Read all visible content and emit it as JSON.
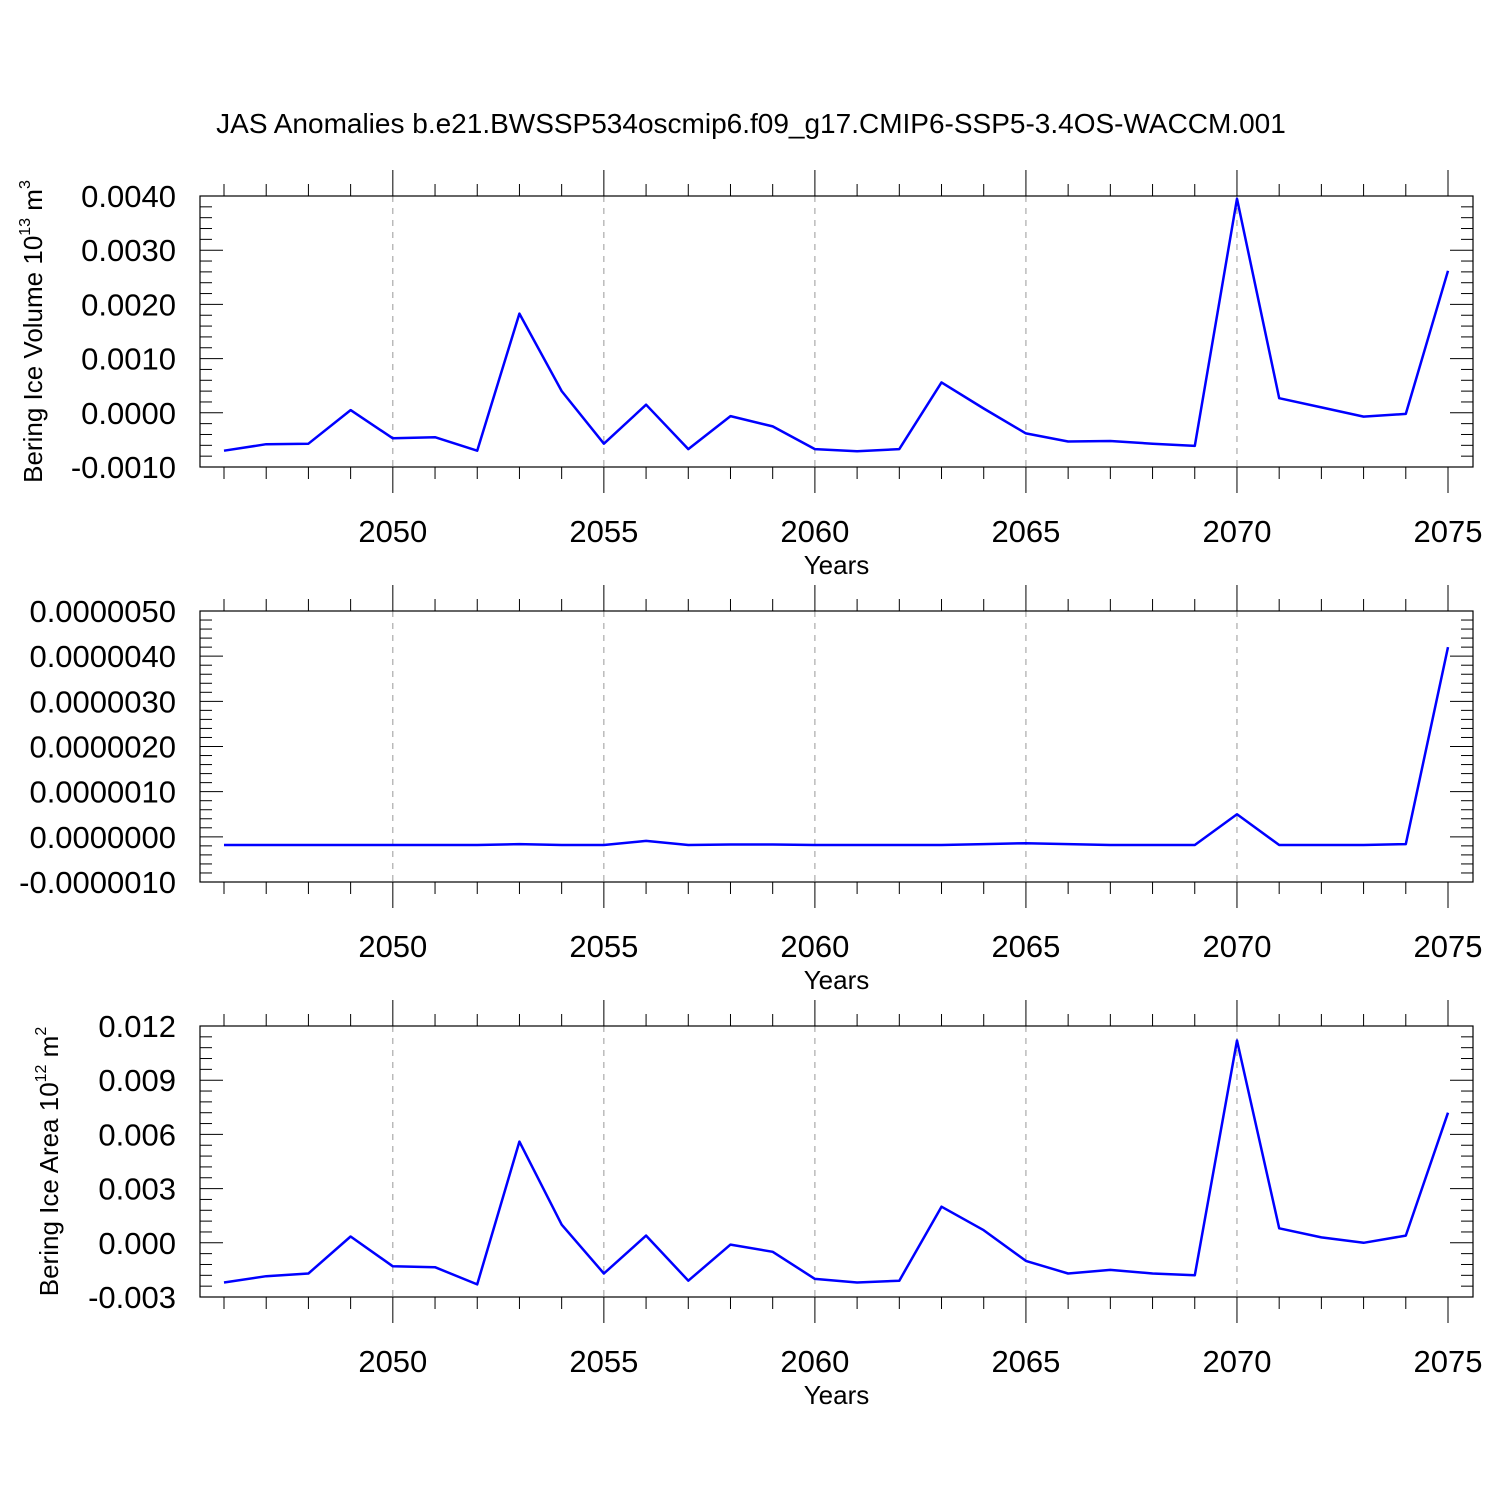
{
  "title": "JAS Anomalies b.e21.BWSSP534oscmip6.f09_g17.CMIP6-SSP5-3.4OS-WACCM.001",
  "colors": {
    "line": "#0000ff",
    "axis": "#000000",
    "grid": "#999999"
  },
  "chart_data": [
    {
      "type": "line",
      "name": "ice-volume",
      "ylabel": {
        "main": "Bering Ice Volume 10",
        "sup1": "13",
        "mid": " m",
        "sup2": "3"
      },
      "xlabel": "Years",
      "xlim": [
        2046,
        2075
      ],
      "x_ticks": [
        2050,
        2055,
        2060,
        2065,
        2070,
        2075
      ],
      "ylim": [
        -0.001,
        0.004
      ],
      "y_ticks": [
        -0.001,
        0,
        0.001,
        0.002,
        0.003,
        0.004
      ],
      "y_tick_labels": [
        "-0.0010",
        "0.0000",
        "0.0010",
        "0.0020",
        "0.0030",
        "0.0040"
      ],
      "x": [
        2046,
        2047,
        2048,
        2049,
        2050,
        2051,
        2052,
        2053,
        2054,
        2055,
        2056,
        2057,
        2058,
        2059,
        2060,
        2061,
        2062,
        2063,
        2064,
        2065,
        2066,
        2067,
        2068,
        2069,
        2070,
        2071,
        2072,
        2073,
        2074,
        2075
      ],
      "values": [
        -0.0007,
        -0.00058,
        -0.00057,
        5e-05,
        -0.00047,
        -0.00045,
        -0.0007,
        0.00183,
        0.0004,
        -0.00057,
        0.00015,
        -0.00067,
        -6e-05,
        -0.00025,
        -0.00067,
        -0.00071,
        -0.00067,
        0.00056,
        8e-05,
        -0.00038,
        -0.00053,
        -0.00052,
        -0.00057,
        -0.00061,
        0.00395,
        0.00027,
        0.0001,
        -7e-05,
        -2e-05,
        0.00262
      ]
    },
    {
      "type": "line",
      "name": "middle-series",
      "ylabel": null,
      "xlabel": "Years",
      "xlim": [
        2046,
        2075
      ],
      "x_ticks": [
        2050,
        2055,
        2060,
        2065,
        2070,
        2075
      ],
      "ylim": [
        -1e-06,
        5e-06
      ],
      "y_ticks": [
        -1e-06,
        0,
        1e-06,
        2e-06,
        3e-06,
        4e-06,
        5e-06
      ],
      "y_tick_labels": [
        "-0.0000010",
        "0.0000000",
        "0.0000010",
        "0.0000020",
        "0.0000030",
        "0.0000040",
        "0.0000050"
      ],
      "x": [
        2046,
        2047,
        2048,
        2049,
        2050,
        2051,
        2052,
        2053,
        2054,
        2055,
        2056,
        2057,
        2058,
        2059,
        2060,
        2061,
        2062,
        2063,
        2064,
        2065,
        2066,
        2067,
        2068,
        2069,
        2070,
        2071,
        2072,
        2073,
        2074,
        2075
      ],
      "values": [
        -1.8e-07,
        -1.8e-07,
        -1.8e-07,
        -1.8e-07,
        -1.8e-07,
        -1.8e-07,
        -1.8e-07,
        -1.6e-07,
        -1.8e-07,
        -1.8e-07,
        -9e-08,
        -1.8e-07,
        -1.7e-07,
        -1.7e-07,
        -1.8e-07,
        -1.8e-07,
        -1.8e-07,
        -1.8e-07,
        -1.6e-07,
        -1.4e-07,
        -1.6e-07,
        -1.8e-07,
        -1.8e-07,
        -1.8e-07,
        5e-07,
        -1.8e-07,
        -1.8e-07,
        -1.8e-07,
        -1.6e-07,
        4.2e-06
      ]
    },
    {
      "type": "line",
      "name": "ice-area",
      "ylabel": {
        "main": "Bering Ice Area 10",
        "sup1": "12",
        "mid": " m",
        "sup2": "2"
      },
      "xlabel": "Years",
      "xlim": [
        2046,
        2075
      ],
      "x_ticks": [
        2050,
        2055,
        2060,
        2065,
        2070,
        2075
      ],
      "ylim": [
        -0.003,
        0.012
      ],
      "y_ticks": [
        -0.003,
        0,
        0.003,
        0.006,
        0.009,
        0.012
      ],
      "y_tick_labels": [
        "-0.003",
        "0.000",
        "0.003",
        "0.006",
        "0.009",
        "0.012"
      ],
      "x": [
        2046,
        2047,
        2048,
        2049,
        2050,
        2051,
        2052,
        2053,
        2054,
        2055,
        2056,
        2057,
        2058,
        2059,
        2060,
        2061,
        2062,
        2063,
        2064,
        2065,
        2066,
        2067,
        2068,
        2069,
        2070,
        2071,
        2072,
        2073,
        2074,
        2075
      ],
      "values": [
        -0.0022,
        -0.00185,
        -0.0017,
        0.00035,
        -0.0013,
        -0.00135,
        -0.0023,
        0.0056,
        0.001,
        -0.0017,
        0.0004,
        -0.0021,
        -0.0001,
        -0.0005,
        -0.002,
        -0.0022,
        -0.0021,
        0.002,
        0.0007,
        -0.001,
        -0.0017,
        -0.0015,
        -0.0017,
        -0.0018,
        0.0112,
        0.0008,
        0.0003,
        0.0,
        0.0004,
        0.0072
      ]
    }
  ]
}
